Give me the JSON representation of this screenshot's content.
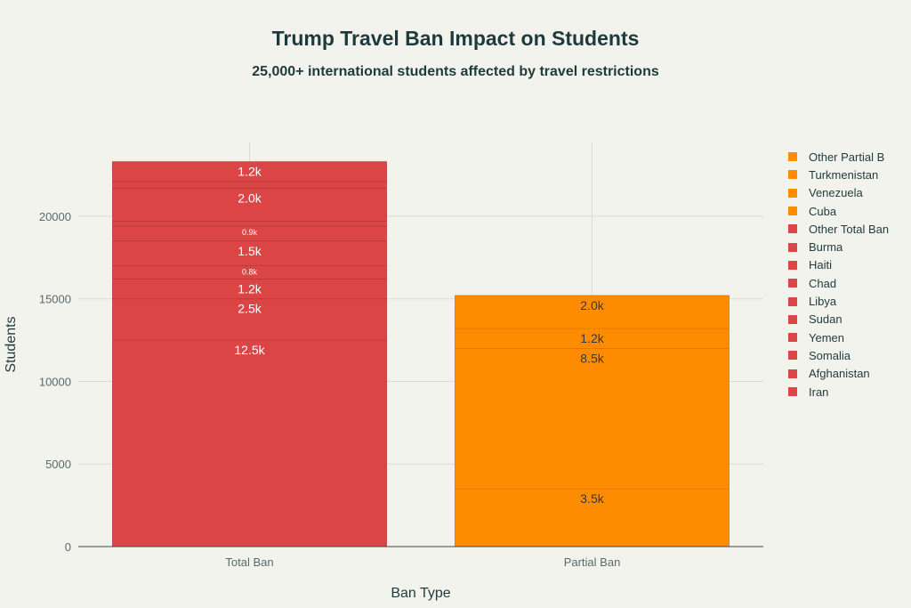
{
  "chart_data": {
    "type": "bar",
    "stacked": true,
    "title": "Trump Travel Ban Impact on Students",
    "subtitle": "25,000+ international students affected by travel restrictions",
    "xlabel": "Ban Type",
    "ylabel": "Students",
    "categories": [
      "Total Ban",
      "Partial Ban"
    ],
    "ylim": [
      0,
      24470
    ],
    "yticks": [
      0,
      5000,
      10000,
      15000,
      20000
    ],
    "grid": true,
    "legend_position": "right",
    "series": [
      {
        "name": "Iran",
        "values": [
          12500,
          0
        ],
        "labels": [
          "12.5k",
          ""
        ],
        "color": "#DB4545"
      },
      {
        "name": "Afghanistan",
        "values": [
          2500,
          0
        ],
        "labels": [
          "2.5k",
          ""
        ],
        "color": "#DB4545"
      },
      {
        "name": "Somalia",
        "values": [
          1200,
          0
        ],
        "labels": [
          "1.2k",
          ""
        ],
        "color": "#DB4545"
      },
      {
        "name": "Yemen",
        "values": [
          800,
          0
        ],
        "labels": [
          "0.8k",
          ""
        ],
        "color": "#DB4545"
      },
      {
        "name": "Sudan",
        "values": [
          1500,
          0
        ],
        "labels": [
          "1.5k",
          ""
        ],
        "color": "#DB4545"
      },
      {
        "name": "Libya",
        "values": [
          900,
          0
        ],
        "labels": [
          "0.9k",
          ""
        ],
        "color": "#DB4545"
      },
      {
        "name": "Chad",
        "values": [
          300,
          0
        ],
        "labels": [
          "",
          ""
        ],
        "color": "#DB4545"
      },
      {
        "name": "Haiti",
        "values": [
          2000,
          0
        ],
        "labels": [
          "2.0k",
          ""
        ],
        "color": "#DB4545"
      },
      {
        "name": "Burma",
        "values": [
          400,
          0
        ],
        "labels": [
          "",
          ""
        ],
        "color": "#DB4545"
      },
      {
        "name": "Other Total Ban",
        "values": [
          1200,
          0
        ],
        "labels": [
          "1.2k",
          ""
        ],
        "color": "#DB4545"
      },
      {
        "name": "Cuba",
        "values": [
          0,
          3500
        ],
        "labels": [
          "",
          "3.5k"
        ],
        "color": "#FF8C00"
      },
      {
        "name": "Venezuela",
        "values": [
          0,
          8500
        ],
        "labels": [
          "",
          "8.5k"
        ],
        "color": "#FF8C00"
      },
      {
        "name": "Turkmenistan",
        "values": [
          0,
          1200
        ],
        "labels": [
          "",
          "1.2k"
        ],
        "color": "#FF8C00"
      },
      {
        "name": "Other Partial B",
        "values": [
          0,
          2000
        ],
        "labels": [
          "",
          "2.0k"
        ],
        "color": "#FF8C00"
      }
    ]
  }
}
